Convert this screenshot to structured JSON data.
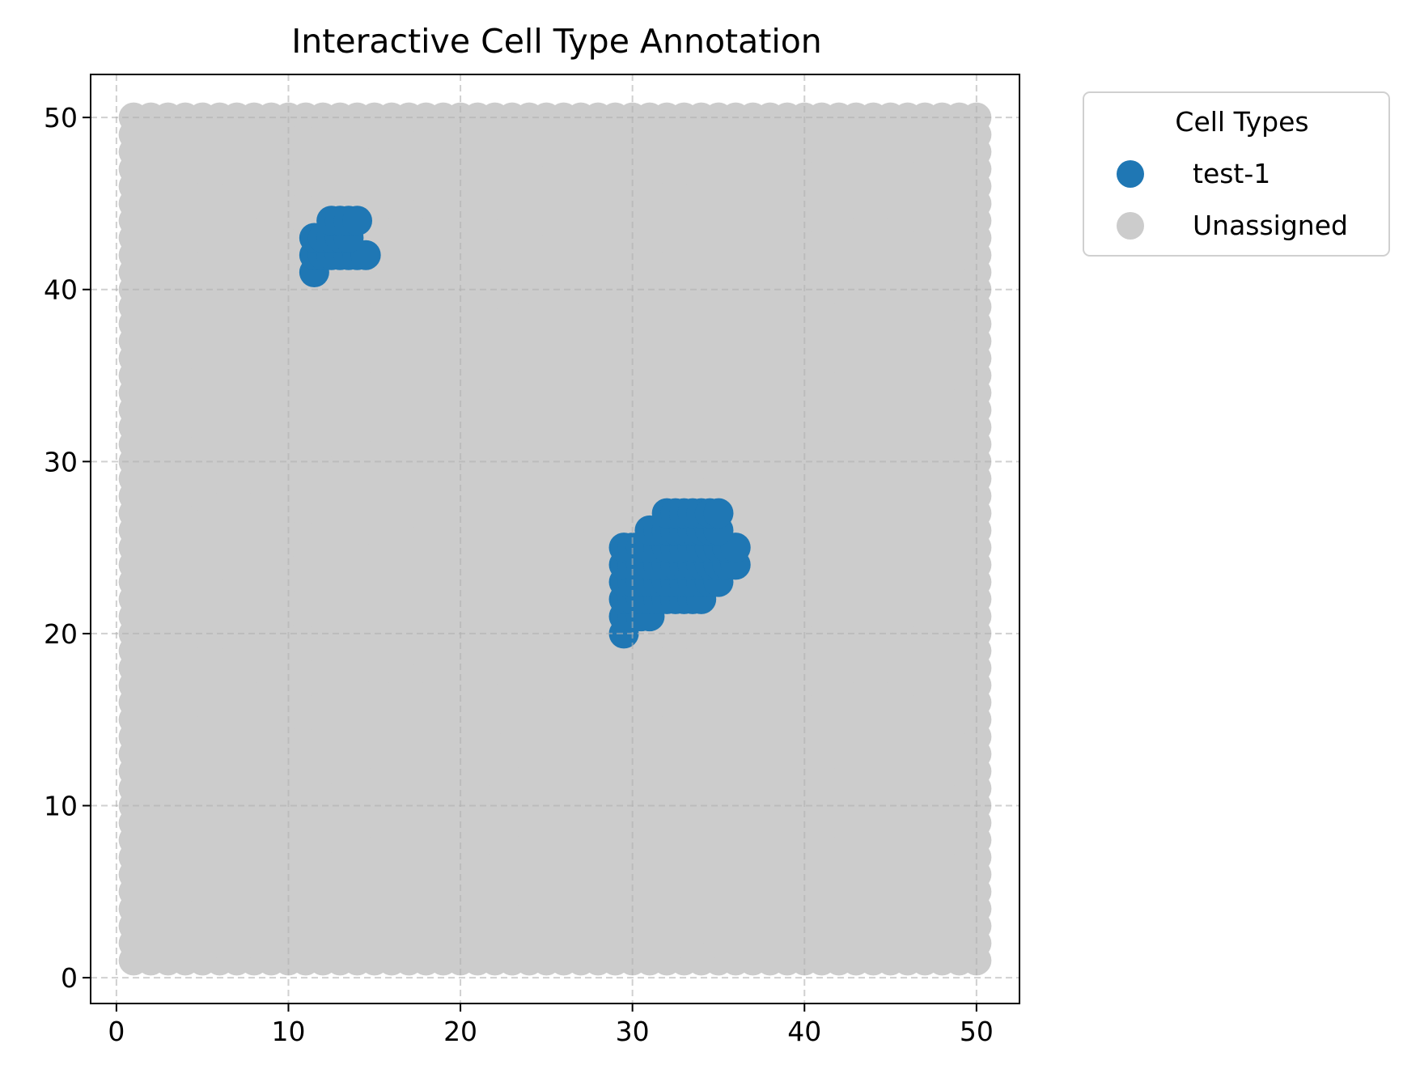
{
  "chart_data": {
    "type": "scatter",
    "title": "Interactive Cell Type Annotation",
    "xlabel": "",
    "ylabel": "",
    "xlim": [
      -1.5,
      52.5
    ],
    "ylim": [
      52.5,
      -1.5
    ],
    "y_inverted": true,
    "xticks": [
      0,
      10,
      20,
      30,
      40,
      50
    ],
    "yticks": [
      0,
      10,
      20,
      30,
      40,
      50
    ],
    "grid": true,
    "grid_style": "dashed",
    "grid_range": [
      1,
      50
    ],
    "legend": {
      "title": "Cell Types",
      "placement": "outside-top-right",
      "entries": [
        {
          "label": "test-1",
          "color": "#1f77b4"
        },
        {
          "label": "Unassigned",
          "color": "#cccccc"
        }
      ]
    },
    "series": [
      {
        "name": "test-1",
        "color": "#1f77b4",
        "regions": [
          {
            "rows": [
              {
                "y": 20,
                "x": [
                  29.5,
                  29.5
                ]
              },
              {
                "y": 21,
                "x": [
                  29.5,
                  31
                ]
              },
              {
                "y": 22,
                "x": [
                  29.5,
                  34
                ]
              },
              {
                "y": 23,
                "x": [
                  29.5,
                  35
                ]
              },
              {
                "y": 24,
                "x": [
                  29.5,
                  36
                ]
              },
              {
                "y": 25,
                "x": [
                  29.5,
                  36
                ]
              },
              {
                "y": 26,
                "x": [
                  31,
                  35
                ]
              },
              {
                "y": 27,
                "x": [
                  32,
                  35
                ]
              }
            ]
          },
          {
            "rows": [
              {
                "y": 41,
                "x": [
                  11.5,
                  11.5
                ]
              },
              {
                "y": 42,
                "x": [
                  11.5,
                  14.5
                ]
              },
              {
                "y": 43,
                "x": [
                  11.5,
                  13.5
                ]
              },
              {
                "y": 44,
                "x": [
                  12.5,
                  14
                ]
              }
            ]
          }
        ]
      },
      {
        "name": "Unassigned",
        "color": "#cccccc",
        "grid_x": [
          1,
          50
        ],
        "grid_y": [
          1,
          50
        ],
        "step": 1
      }
    ]
  }
}
